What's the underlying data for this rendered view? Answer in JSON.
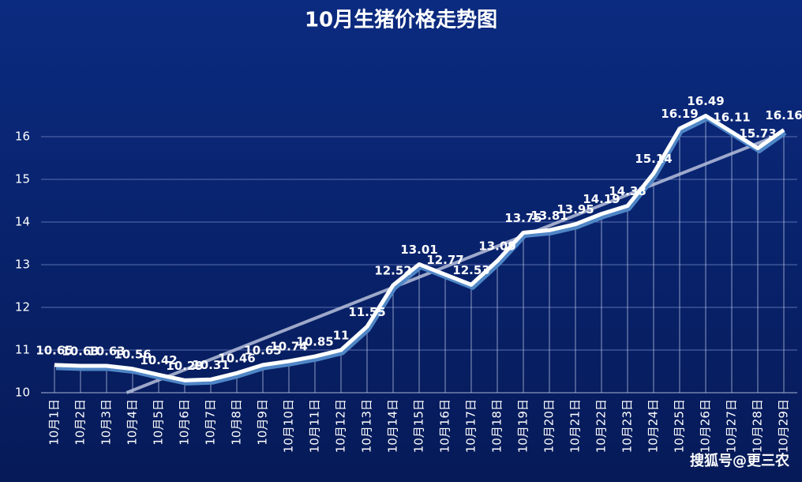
{
  "chart_data": {
    "type": "line",
    "title": "10月生猪价格走势图",
    "categories": [
      "10月1日",
      "10月2日",
      "10月3日",
      "10月4日",
      "10月5日",
      "10月6日",
      "10月7日",
      "10月8日",
      "10月9日",
      "10月10日",
      "10月11日",
      "10月12日",
      "10月13日",
      "10月14日",
      "10月15日",
      "10月16日",
      "10月17日",
      "10月18日",
      "10月19日",
      "10月20日",
      "10月21日",
      "10月22日",
      "10月23日",
      "10月24日",
      "10月25日",
      "10月26日",
      "10月27日",
      "10月28日",
      "10月29日"
    ],
    "series": [
      {
        "name": "生猪价格",
        "color": "#ffffff",
        "values": [
          10.65,
          10.63,
          10.63,
          10.56,
          10.42,
          10.29,
          10.31,
          10.46,
          10.65,
          10.74,
          10.85,
          11,
          11.55,
          12.52,
          13.01,
          12.77,
          12.53,
          13.09,
          13.75,
          13.81,
          13.95,
          14.19,
          14.38,
          15.14,
          16.19,
          16.49,
          16.11,
          15.73,
          16.16
        ]
      }
    ],
    "ylim": [
      10,
      17
    ],
    "yticks": [
      10,
      11,
      12,
      13,
      14,
      15,
      16
    ],
    "grid": true,
    "trendline": true,
    "watermark": "搜狐号@更三农"
  }
}
